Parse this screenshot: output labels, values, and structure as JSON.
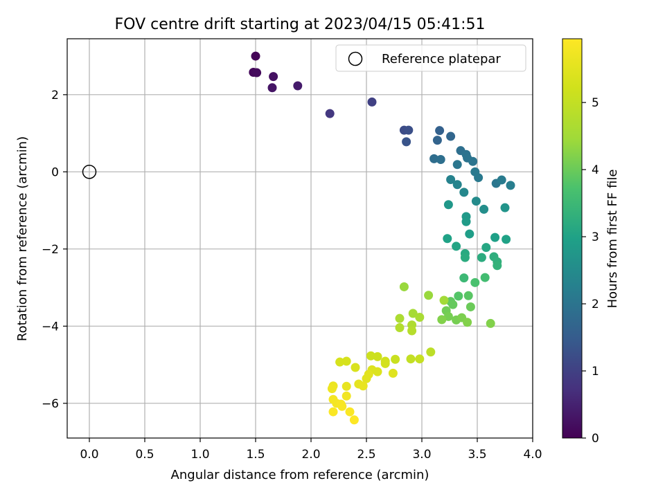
{
  "chart_data": {
    "type": "scatter",
    "title": "FOV centre drift starting at 2023/04/15 05:41:51",
    "xlabel": "Angular distance from reference (arcmin)",
    "ylabel": "Rotation from reference (arcmin)",
    "xlim": [
      -0.2,
      4.0
    ],
    "ylim": [
      -6.9,
      3.45
    ],
    "x_ticks": [
      0.0,
      0.5,
      1.0,
      1.5,
      2.0,
      2.5,
      3.0,
      3.5,
      4.0
    ],
    "x_tick_labels": [
      "0.0",
      "0.5",
      "1.0",
      "1.5",
      "2.0",
      "2.5",
      "3.0",
      "3.5",
      "4.0"
    ],
    "y_ticks": [
      -6,
      -4,
      -2,
      0,
      2
    ],
    "y_tick_labels": [
      "−6",
      "−4",
      "−2",
      "0",
      "2"
    ],
    "grid": true,
    "legend": {
      "position": "upper-right",
      "entries": [
        "Reference platepar"
      ]
    },
    "reference_point": {
      "x": 0,
      "y": 0,
      "marker": "open-circle"
    },
    "colormap": "viridis",
    "colorbar": {
      "label": "Hours from first FF file",
      "range": [
        0,
        5.95
      ],
      "ticks": [
        0,
        1,
        2,
        3,
        4,
        5
      ],
      "tick_labels": [
        "0",
        "1",
        "2",
        "3",
        "4",
        "5"
      ]
    },
    "series": [
      {
        "points": [
          {
            "x": 1.5,
            "y": 3.0,
            "c": 0.05
          },
          {
            "x": 1.48,
            "y": 2.58,
            "c": 0.1
          },
          {
            "x": 1.51,
            "y": 2.57,
            "c": 0.15
          },
          {
            "x": 1.66,
            "y": 2.47,
            "c": 0.25
          },
          {
            "x": 1.65,
            "y": 2.18,
            "c": 0.3
          },
          {
            "x": 1.88,
            "y": 2.23,
            "c": 0.4
          },
          {
            "x": 2.17,
            "y": 1.51,
            "c": 0.85
          },
          {
            "x": 2.55,
            "y": 1.81,
            "c": 1.0
          },
          {
            "x": 2.84,
            "y": 1.08,
            "c": 1.2
          },
          {
            "x": 2.88,
            "y": 1.08,
            "c": 1.25
          },
          {
            "x": 2.86,
            "y": 0.78,
            "c": 1.35
          },
          {
            "x": 3.16,
            "y": 1.07,
            "c": 1.6
          },
          {
            "x": 3.14,
            "y": 0.82,
            "c": 1.65
          },
          {
            "x": 3.26,
            "y": 0.92,
            "c": 1.7
          },
          {
            "x": 3.11,
            "y": 0.34,
            "c": 1.85
          },
          {
            "x": 3.17,
            "y": 0.32,
            "c": 1.9
          },
          {
            "x": 3.35,
            "y": 0.55,
            "c": 1.9
          },
          {
            "x": 3.4,
            "y": 0.45,
            "c": 1.95
          },
          {
            "x": 3.41,
            "y": 0.36,
            "c": 1.98
          },
          {
            "x": 3.46,
            "y": 0.27,
            "c": 2.0
          },
          {
            "x": 3.32,
            "y": 0.19,
            "c": 2.05
          },
          {
            "x": 3.48,
            "y": 0.0,
            "c": 2.1
          },
          {
            "x": 3.51,
            "y": -0.15,
            "c": 2.1
          },
          {
            "x": 3.67,
            "y": -0.3,
            "c": 2.05
          },
          {
            "x": 3.72,
            "y": -0.21,
            "c": 2.15
          },
          {
            "x": 3.8,
            "y": -0.35,
            "c": 2.2
          },
          {
            "x": 3.26,
            "y": -0.2,
            "c": 2.3
          },
          {
            "x": 3.32,
            "y": -0.33,
            "c": 2.35
          },
          {
            "x": 3.38,
            "y": -0.53,
            "c": 2.4
          },
          {
            "x": 3.49,
            "y": -0.76,
            "c": 2.5
          },
          {
            "x": 3.24,
            "y": -0.85,
            "c": 2.75
          },
          {
            "x": 3.56,
            "y": -0.97,
            "c": 2.55
          },
          {
            "x": 3.75,
            "y": -0.93,
            "c": 2.7
          },
          {
            "x": 3.4,
            "y": -1.16,
            "c": 2.8
          },
          {
            "x": 3.4,
            "y": -1.29,
            "c": 2.85
          },
          {
            "x": 3.43,
            "y": -1.61,
            "c": 2.9
          },
          {
            "x": 3.23,
            "y": -1.73,
            "c": 3.0
          },
          {
            "x": 3.66,
            "y": -1.7,
            "c": 2.95
          },
          {
            "x": 3.76,
            "y": -1.75,
            "c": 3.0
          },
          {
            "x": 3.31,
            "y": -1.93,
            "c": 3.05
          },
          {
            "x": 3.58,
            "y": -1.96,
            "c": 3.1
          },
          {
            "x": 3.39,
            "y": -2.12,
            "c": 3.15
          },
          {
            "x": 3.39,
            "y": -2.22,
            "c": 3.2
          },
          {
            "x": 3.54,
            "y": -2.22,
            "c": 3.2
          },
          {
            "x": 3.65,
            "y": -2.2,
            "c": 3.25
          },
          {
            "x": 3.68,
            "y": -2.33,
            "c": 3.3
          },
          {
            "x": 3.68,
            "y": -2.43,
            "c": 3.35
          },
          {
            "x": 3.38,
            "y": -2.75,
            "c": 3.5
          },
          {
            "x": 3.57,
            "y": -2.74,
            "c": 3.6
          },
          {
            "x": 3.48,
            "y": -2.87,
            "c": 3.7
          },
          {
            "x": 3.33,
            "y": -3.22,
            "c": 3.8
          },
          {
            "x": 3.42,
            "y": -3.21,
            "c": 3.85
          },
          {
            "x": 3.26,
            "y": -3.36,
            "c": 3.9
          },
          {
            "x": 3.28,
            "y": -3.44,
            "c": 3.95
          },
          {
            "x": 3.44,
            "y": -3.5,
            "c": 4.0
          },
          {
            "x": 3.22,
            "y": -3.6,
            "c": 4.05
          },
          {
            "x": 3.31,
            "y": -3.84,
            "c": 4.1
          },
          {
            "x": 3.36,
            "y": -3.78,
            "c": 4.15
          },
          {
            "x": 3.41,
            "y": -3.9,
            "c": 4.2
          },
          {
            "x": 3.24,
            "y": -3.75,
            "c": 4.1
          },
          {
            "x": 3.18,
            "y": -3.83,
            "c": 4.2
          },
          {
            "x": 3.62,
            "y": -3.93,
            "c": 4.2
          },
          {
            "x": 2.84,
            "y": -2.98,
            "c": 4.4
          },
          {
            "x": 3.06,
            "y": -3.2,
            "c": 4.4
          },
          {
            "x": 3.2,
            "y": -3.33,
            "c": 4.5
          },
          {
            "x": 2.92,
            "y": -3.67,
            "c": 4.55
          },
          {
            "x": 2.98,
            "y": -3.77,
            "c": 4.6
          },
          {
            "x": 2.8,
            "y": -3.8,
            "c": 4.65
          },
          {
            "x": 2.91,
            "y": -3.97,
            "c": 4.7
          },
          {
            "x": 2.8,
            "y": -4.04,
            "c": 4.75
          },
          {
            "x": 2.91,
            "y": -4.12,
            "c": 4.8
          },
          {
            "x": 3.08,
            "y": -4.67,
            "c": 4.9
          },
          {
            "x": 2.9,
            "y": -4.85,
            "c": 5.0
          },
          {
            "x": 2.98,
            "y": -4.85,
            "c": 5.05
          },
          {
            "x": 2.76,
            "y": -4.86,
            "c": 5.1
          },
          {
            "x": 2.54,
            "y": -4.77,
            "c": 5.15
          },
          {
            "x": 2.6,
            "y": -4.79,
            "c": 5.15
          },
          {
            "x": 2.67,
            "y": -4.91,
            "c": 5.2
          },
          {
            "x": 2.67,
            "y": -4.97,
            "c": 5.25
          },
          {
            "x": 2.26,
            "y": -4.93,
            "c": 5.3
          },
          {
            "x": 2.32,
            "y": -4.91,
            "c": 5.3
          },
          {
            "x": 2.4,
            "y": -5.07,
            "c": 5.35
          },
          {
            "x": 2.55,
            "y": -5.13,
            "c": 5.4
          },
          {
            "x": 2.6,
            "y": -5.18,
            "c": 5.4
          },
          {
            "x": 2.74,
            "y": -5.22,
            "c": 5.45
          },
          {
            "x": 2.52,
            "y": -5.25,
            "c": 5.5
          },
          {
            "x": 2.5,
            "y": -5.36,
            "c": 5.5
          },
          {
            "x": 2.43,
            "y": -5.5,
            "c": 5.55
          },
          {
            "x": 2.47,
            "y": -5.55,
            "c": 5.6
          },
          {
            "x": 2.32,
            "y": -5.56,
            "c": 5.6
          },
          {
            "x": 2.2,
            "y": -5.55,
            "c": 5.65
          },
          {
            "x": 2.19,
            "y": -5.62,
            "c": 5.7
          },
          {
            "x": 2.32,
            "y": -5.81,
            "c": 5.75
          },
          {
            "x": 2.2,
            "y": -5.9,
            "c": 5.8
          },
          {
            "x": 2.23,
            "y": -6.0,
            "c": 5.8
          },
          {
            "x": 2.27,
            "y": -6.02,
            "c": 5.85
          },
          {
            "x": 2.28,
            "y": -6.08,
            "c": 5.85
          },
          {
            "x": 2.35,
            "y": -6.22,
            "c": 5.9
          },
          {
            "x": 2.2,
            "y": -6.22,
            "c": 5.9
          },
          {
            "x": 2.39,
            "y": -6.43,
            "c": 5.95
          }
        ]
      }
    ]
  }
}
